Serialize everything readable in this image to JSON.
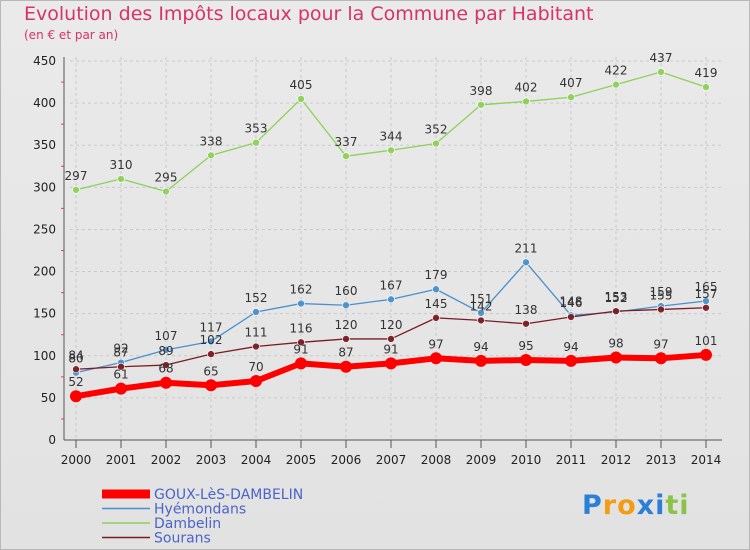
{
  "title": "Evolution des Impôts locaux pour la Commune par Habitant",
  "subtitle": "(en € et par an)",
  "logo": {
    "letters": [
      "P",
      "r",
      "o",
      "x",
      "i",
      "t",
      "i"
    ],
    "colors": [
      "#2c7fd6",
      "#f39c12",
      "#f39c12",
      "#2c7fd6",
      "#2c7fd6",
      "#8bc34a",
      "#8bc34a"
    ]
  },
  "chart_data": {
    "type": "line",
    "title": "Evolution des Impôts locaux pour la Commune par Habitant",
    "subtitle": "(en € et par an)",
    "x": [
      "2000",
      "2001",
      "2002",
      "2003",
      "2004",
      "2005",
      "2006",
      "2007",
      "2008",
      "2009",
      "2010",
      "2011",
      "2012",
      "2013",
      "2014"
    ],
    "ylim": [
      0,
      450
    ],
    "yticks": [
      "0",
      "50",
      "100",
      "150",
      "200",
      "250",
      "300",
      "350",
      "400",
      "450"
    ],
    "grid": true,
    "legend": "bottom-left",
    "series": [
      {
        "name": "Dambelin",
        "color": "#8ed05a",
        "values": [
          297,
          310,
          295,
          338,
          353,
          405,
          337,
          344,
          352,
          398,
          402,
          407,
          422,
          437,
          419
        ],
        "labels": [
          "297",
          "310",
          "295",
          "338",
          "353",
          "405",
          "337",
          "344",
          "352",
          "398",
          "402",
          "407",
          "422",
          "437",
          "419"
        ]
      },
      {
        "name": "Hyémondans",
        "color": "#4a90cc",
        "values": [
          80,
          92,
          107,
          117,
          152,
          162,
          160,
          167,
          179,
          151,
          211,
          148,
          152,
          159,
          165
        ],
        "labels": [
          "80",
          "92",
          "107",
          "117",
          "152",
          "162",
          "160",
          "167",
          "179",
          "151",
          "211",
          "148",
          "152",
          "159",
          "165"
        ]
      },
      {
        "name": "Sourans",
        "color": "#7a1c24",
        "values": [
          84,
          87,
          89,
          102,
          111,
          116,
          120,
          120,
          145,
          142,
          138,
          146,
          153,
          155,
          157
        ],
        "labels": [
          "84",
          "87",
          "89",
          "102",
          "111",
          "116",
          "120",
          "120",
          "145",
          "142",
          "138",
          "146",
          "153",
          "155",
          "157"
        ]
      },
      {
        "name": "GOUX-LèS-DAMBELIN",
        "color": "#ff0000",
        "values": [
          52,
          61,
          68,
          65,
          70,
          91,
          87,
          91,
          97,
          94,
          95,
          94,
          98,
          97,
          101
        ],
        "labels": [
          "52",
          "61",
          "68",
          "65",
          "70",
          "91",
          "87",
          "91",
          "97",
          "94",
          "95",
          "94",
          "98",
          "97",
          "101"
        ]
      }
    ],
    "legend_entries": [
      {
        "name": "GOUX-LèS-DAMBELIN",
        "color": "#ff0000",
        "thick": true
      },
      {
        "name": "Hyémondans",
        "color": "#4a90cc",
        "thick": false
      },
      {
        "name": "Dambelin",
        "color": "#8ed05a",
        "thick": false
      },
      {
        "name": "Sourans",
        "color": "#7a1c24",
        "thick": false
      }
    ]
  }
}
